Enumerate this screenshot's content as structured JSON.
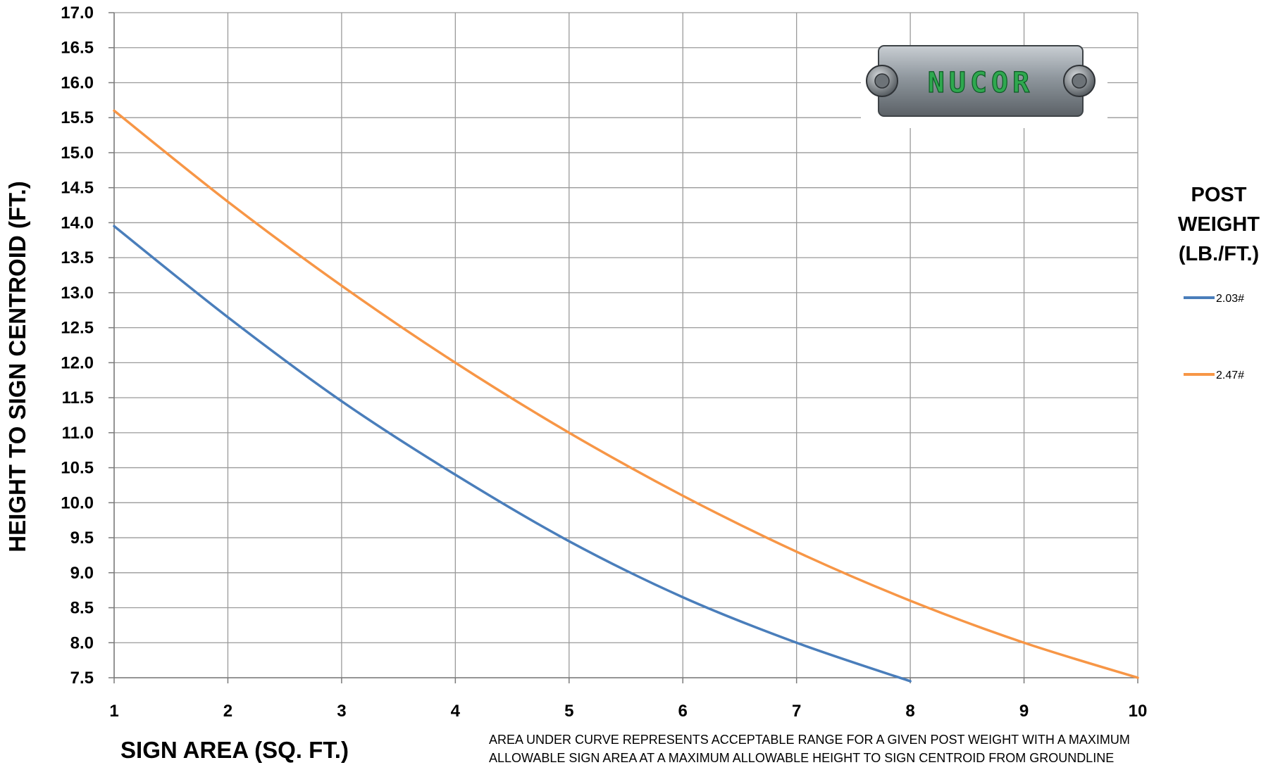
{
  "logo": {
    "text": "NUCOR"
  },
  "chart_data": {
    "type": "line",
    "title": "",
    "xlabel": "SIGN AREA (SQ. FT.)",
    "ylabel": "HEIGHT TO SIGN CENTROID (FT.)",
    "xlim": [
      1,
      10
    ],
    "ylim": [
      7.5,
      17.0
    ],
    "x_ticks": [
      "1",
      "2",
      "3",
      "4",
      "5",
      "6",
      "7",
      "8",
      "9",
      "10"
    ],
    "y_ticks": [
      "17.0",
      "16.5",
      "16.0",
      "15.5",
      "15.0",
      "14.5",
      "14.0",
      "13.5",
      "13.0",
      "12.5",
      "12.0",
      "11.5",
      "11.0",
      "10.5",
      "10.0",
      "9.5",
      "9.0",
      "8.5",
      "8.0",
      "7.5"
    ],
    "grid": true,
    "legend": {
      "title_lines": [
        "POST",
        "WEIGHT",
        "(LB./FT.)"
      ],
      "placement": "right"
    },
    "series": [
      {
        "name": "2.03#",
        "color": "#4a7ebb",
        "x": [
          1,
          2,
          3,
          4,
          5,
          6,
          7,
          8
        ],
        "y": [
          13.95,
          12.65,
          11.45,
          10.4,
          9.45,
          8.65,
          8.0,
          7.45
        ]
      },
      {
        "name": "2.47#",
        "color": "#f79646",
        "x": [
          1,
          2,
          3,
          4,
          5,
          6,
          7,
          8,
          9,
          10
        ],
        "y": [
          15.6,
          14.3,
          13.1,
          12.0,
          11.0,
          10.1,
          9.3,
          8.6,
          8.0,
          7.5
        ]
      }
    ],
    "note_lines": [
      "AREA UNDER CURVE REPRESENTS ACCEPTABLE RANGE FOR  A GIVEN POST WEIGHT  WITH  A MAXIMUM",
      "ALLOWABLE SIGN AREA AT A MAXIMUM ALLOWABLE HEIGHT TO SIGN  CENTROID FROM GROUNDLINE"
    ]
  }
}
